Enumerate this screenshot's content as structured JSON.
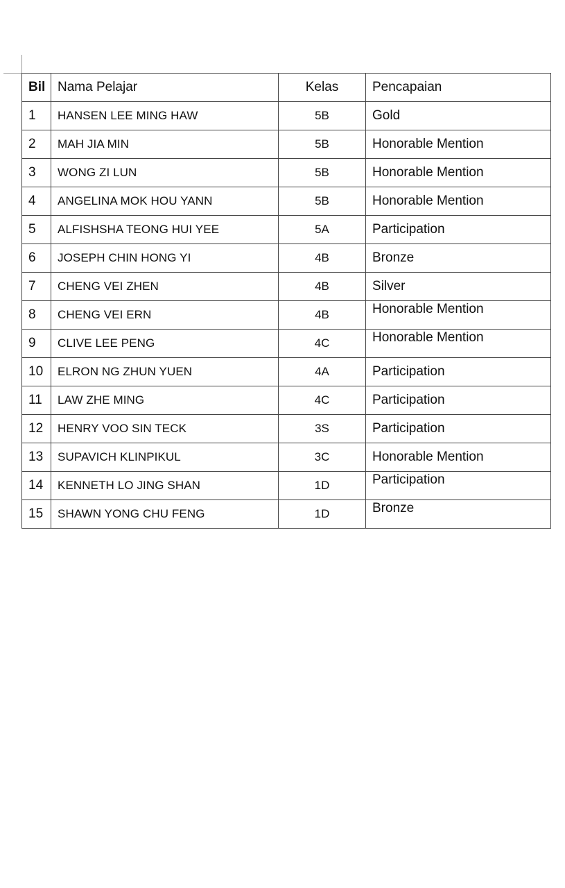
{
  "table": {
    "headers": {
      "bil": "Bil",
      "nama": "Nama Pelajar",
      "kelas": "Kelas",
      "pencapaian": "Pencapaian"
    },
    "rows": [
      {
        "bil": "1",
        "nama": "HANSEN LEE MING HAW",
        "kelas": "5B",
        "pencapaian": "Gold"
      },
      {
        "bil": "2",
        "nama": "MAH JIA MIN",
        "kelas": "5B",
        "pencapaian": "Honorable Mention"
      },
      {
        "bil": "3",
        "nama": "WONG ZI LUN",
        "kelas": "5B",
        "pencapaian": "Honorable Mention"
      },
      {
        "bil": "4",
        "nama": "ANGELINA MOK HOU YANN",
        "kelas": "5B",
        "pencapaian": "Honorable Mention"
      },
      {
        "bil": "5",
        "nama": "ALFISHSHA TEONG HUI YEE",
        "kelas": "5A",
        "pencapaian": "Participation"
      },
      {
        "bil": "6",
        "nama": "JOSEPH CHIN HONG YI",
        "kelas": "4B",
        "pencapaian": "Bronze"
      },
      {
        "bil": "7",
        "nama": "CHENG VEI ZHEN",
        "kelas": "4B",
        "pencapaian": "Silver"
      },
      {
        "bil": "8",
        "nama": "CHENG VEI ERN",
        "kelas": "4B",
        "pencapaian": "Honorable Mention"
      },
      {
        "bil": "9",
        "nama": "CLIVE LEE PENG",
        "kelas": "4C",
        "pencapaian": "Honorable Mention"
      },
      {
        "bil": "10",
        "nama": "ELRON NG ZHUN YUEN",
        "kelas": "4A",
        "pencapaian": "Participation"
      },
      {
        "bil": "11",
        "nama": "LAW ZHE MING",
        "kelas": "4C",
        "pencapaian": "Participation"
      },
      {
        "bil": "12",
        "nama": "HENRY VOO SIN TECK",
        "kelas": "3S",
        "pencapaian": "Participation"
      },
      {
        "bil": "13",
        "nama": "SUPAVICH KLINPIKUL",
        "kelas": "3C",
        "pencapaian": "Honorable Mention"
      },
      {
        "bil": "14",
        "nama": "KENNETH LO JING SHAN",
        "kelas": "1D",
        "pencapaian": "Participation"
      },
      {
        "bil": "15",
        "nama": "SHAWN YONG CHU FENG",
        "kelas": "1D",
        "pencapaian": "Bronze"
      }
    ]
  }
}
